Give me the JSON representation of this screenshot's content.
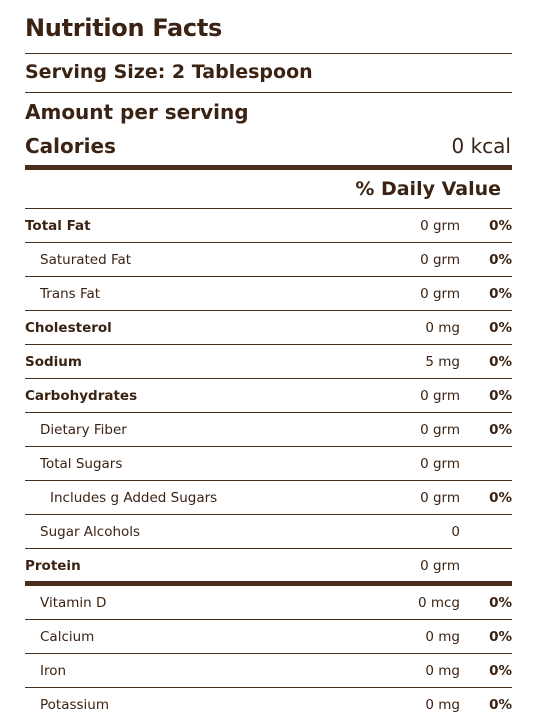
{
  "title": "Nutrition Facts",
  "serving_size": "Serving Size: 2 Tablespoon",
  "amount_per_serving": "Amount per serving",
  "calories": {
    "label": "Calories",
    "value": "0 kcal"
  },
  "daily_value_header": "% Daily Value",
  "nutrients": [
    {
      "label": "Total Fat",
      "amount": "0 grm",
      "dv": "0%"
    },
    {
      "label": "Saturated Fat",
      "amount": "0 grm",
      "dv": "0%"
    },
    {
      "label": "Trans Fat",
      "amount": "0 grm",
      "dv": "0%"
    },
    {
      "label": "Cholesterol",
      "amount": "0 mg",
      "dv": "0%"
    },
    {
      "label": "Sodium",
      "amount": "5 mg",
      "dv": "0%"
    },
    {
      "label": "Carbohydrates",
      "amount": "0 grm",
      "dv": "0%"
    },
    {
      "label": "Dietary Fiber",
      "amount": "0 grm",
      "dv": "0%"
    },
    {
      "label": "Total Sugars",
      "amount": "0 grm",
      "dv": ""
    },
    {
      "label": "Includes g Added Sugars",
      "amount": "0 grm",
      "dv": "0%"
    },
    {
      "label": "Sugar Alcohols",
      "amount": "0",
      "dv": ""
    },
    {
      "label": "Protein",
      "amount": "0 grm",
      "dv": ""
    },
    {
      "label": "Vitamin D",
      "amount": "0 mcg",
      "dv": "0%"
    },
    {
      "label": "Calcium",
      "amount": "0 mg",
      "dv": "0%"
    },
    {
      "label": "Iron",
      "amount": "0 mg",
      "dv": "0%"
    },
    {
      "label": "Potassium",
      "amount": "0 mg",
      "dv": "0%"
    }
  ],
  "colors": {
    "text": "#3b2314",
    "rule": "#4a2e1c",
    "background": "#ffffff"
  }
}
